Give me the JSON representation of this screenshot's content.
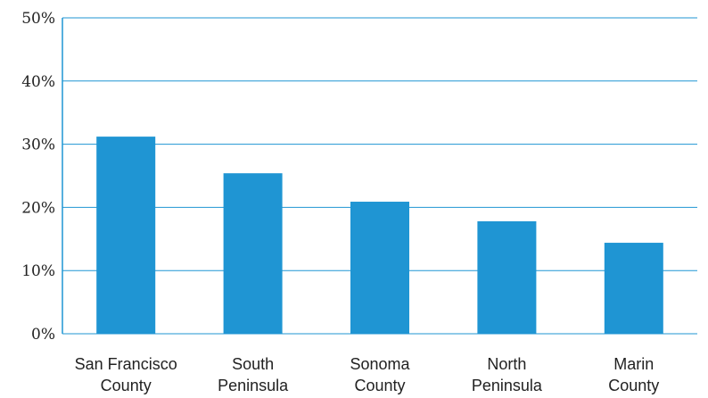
{
  "chart_data": {
    "type": "bar",
    "categories": [
      [
        "San Francisco",
        "County"
      ],
      [
        "South",
        "Peninsula"
      ],
      [
        "Sonoma",
        "County"
      ],
      [
        "North",
        "Peninsula"
      ],
      [
        "Marin",
        "County"
      ]
    ],
    "values": [
      31.2,
      25.4,
      20.9,
      17.8,
      14.4
    ],
    "y_ticks": [
      "0%",
      "10%",
      "20%",
      "30%",
      "40%",
      "50%"
    ],
    "ylim": [
      0,
      50
    ],
    "grid": true,
    "colors": {
      "bar": "#1f95d3",
      "grid": "#1f95d3",
      "axis": "#1f95d3"
    }
  }
}
